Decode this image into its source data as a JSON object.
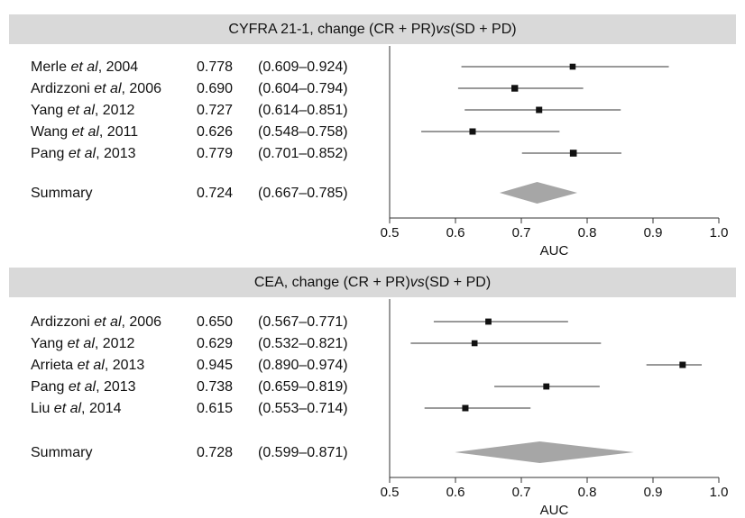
{
  "chart_data": [
    {
      "type": "forest",
      "title_pre": "CYFRA 21-1, change (CR + PR) ",
      "title_em": "vs",
      "title_post": " (SD + PD)",
      "xlabel": "AUC",
      "xlim": [
        0.5,
        1.0
      ],
      "ticks": [
        "0.5",
        "0.6",
        "0.7",
        "0.8",
        "0.9",
        "1.0"
      ],
      "studies": [
        {
          "author": "Merle ",
          "etal": "et al",
          "year": ", 2004",
          "auc": 0.778,
          "auc_text": "0.778",
          "ci": [
            0.609,
            0.924
          ],
          "ci_text": "(0.609–0.924)",
          "weight": 0.8
        },
        {
          "author": "Ardizzoni ",
          "etal": "et al",
          "year": ", 2006",
          "auc": 0.69,
          "auc_text": "0.690",
          "ci": [
            0.604,
            0.794
          ],
          "ci_text": "(0.604–0.794)",
          "weight": 1.2
        },
        {
          "author": "Yang ",
          "etal": "et al",
          "year": ", 2012",
          "auc": 0.727,
          "auc_text": "0.727",
          "ci": [
            0.614,
            0.851
          ],
          "ci_text": "(0.614–0.851)",
          "weight": 1.0
        },
        {
          "author": "Wang ",
          "etal": "et al",
          "year": ", 2011",
          "auc": 0.626,
          "auc_text": "0.626",
          "ci": [
            0.548,
            0.758
          ],
          "ci_text": "(0.548–0.758)",
          "weight": 1.0
        },
        {
          "author": "Pang ",
          "etal": "et al",
          "year": ", 2013",
          "auc": 0.779,
          "auc_text": "0.779",
          "ci": [
            0.701,
            0.852
          ],
          "ci_text": "(0.701–0.852)",
          "weight": 1.3
        }
      ],
      "summary": {
        "label": "Summary",
        "auc": 0.724,
        "auc_text": "0.724",
        "ci": [
          0.667,
          0.785
        ],
        "ci_text": "(0.667–0.785)"
      }
    },
    {
      "type": "forest",
      "title_pre": "CEA, change (CR + PR) ",
      "title_em": "vs",
      "title_post": " (SD + PD)",
      "xlabel": "AUC",
      "xlim": [
        0.5,
        1.0
      ],
      "ticks": [
        "0.5",
        "0.6",
        "0.7",
        "0.8",
        "0.9",
        "1.0"
      ],
      "studies": [
        {
          "author": "Ardizzoni ",
          "etal": "et al",
          "year": ", 2006",
          "auc": 0.65,
          "auc_text": "0.650",
          "ci": [
            0.567,
            0.771
          ],
          "ci_text": "(0.567–0.771)",
          "weight": 0.9
        },
        {
          "author": "Yang ",
          "etal": "et al",
          "year": ", 2012",
          "auc": 0.629,
          "auc_text": "0.629",
          "ci": [
            0.532,
            0.821
          ],
          "ci_text": "(0.532–0.821)",
          "weight": 0.8
        },
        {
          "author": "Arrieta ",
          "etal": "et al",
          "year": ", 2013",
          "auc": 0.945,
          "auc_text": "0.945",
          "ci": [
            0.89,
            0.974
          ],
          "ci_text": "(0.890–0.974)",
          "weight": 1.0
        },
        {
          "author": "Pang ",
          "etal": "et al",
          "year": ", 2013",
          "auc": 0.738,
          "auc_text": "0.738",
          "ci": [
            0.659,
            0.819
          ],
          "ci_text": "(0.659–0.819)",
          "weight": 0.9
        },
        {
          "author": "Liu ",
          "etal": "et al",
          "year": ", 2014",
          "auc": 0.615,
          "auc_text": "0.615",
          "ci": [
            0.553,
            0.714
          ],
          "ci_text": "(0.553–0.714)",
          "weight": 1.0
        }
      ],
      "summary": {
        "label": "Summary",
        "auc": 0.728,
        "auc_text": "0.728",
        "ci": [
          0.599,
          0.871
        ],
        "ci_text": "(0.599–0.871)"
      }
    }
  ],
  "colors": {
    "header_bg": "#d9d9d9",
    "diamond": "#a6a6a6",
    "marker": "#111111",
    "line": "#333333"
  }
}
